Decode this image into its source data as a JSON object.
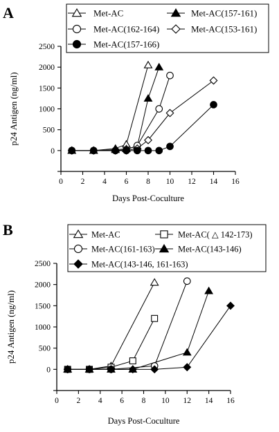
{
  "chart_data": [
    {
      "panel_label": "A",
      "type": "line",
      "xlabel": "Days Post-Coculture",
      "ylabel": "p24 Antigen (ng/ml)",
      "xlim": [
        0,
        16
      ],
      "ylim": [
        -500,
        2500
      ],
      "xticks": [
        0,
        2,
        4,
        6,
        8,
        10,
        12,
        14,
        16
      ],
      "yticks": [
        -500,
        0,
        500,
        1000,
        1500,
        2000,
        2500
      ],
      "ytick_labels": [
        "",
        "0",
        "500",
        "1000",
        "1500",
        "2000",
        "2500"
      ],
      "legend_rows": [
        [
          "Met-AC",
          "Met-AC(157-161)"
        ],
        [
          "Met-AC(162-164)",
          "Met-AC(153-161)"
        ],
        [
          "Met-AC(157-166)"
        ]
      ],
      "series": [
        {
          "name": "Met-AC",
          "marker": "triangle-open",
          "x": [
            1,
            3,
            5,
            6,
            8
          ],
          "y": [
            0,
            0,
            50,
            150,
            2050
          ]
        },
        {
          "name": "Met-AC(157-161)",
          "marker": "triangle-filled",
          "x": [
            1,
            3,
            5,
            6,
            7,
            8,
            9
          ],
          "y": [
            0,
            0,
            20,
            40,
            100,
            1250,
            2000
          ]
        },
        {
          "name": "Met-AC(162-164)",
          "marker": "circle-open",
          "x": [
            1,
            3,
            5,
            6,
            7,
            9,
            10
          ],
          "y": [
            0,
            0,
            0,
            20,
            120,
            1000,
            1800
          ]
        },
        {
          "name": "Met-AC(153-161)",
          "marker": "diamond-open",
          "x": [
            1,
            3,
            5,
            6,
            7,
            8,
            10,
            14
          ],
          "y": [
            0,
            0,
            0,
            0,
            50,
            250,
            900,
            1680
          ]
        },
        {
          "name": "Met-AC(157-166)",
          "marker": "circle-filled",
          "x": [
            1,
            3,
            5,
            6,
            7,
            8,
            9,
            10,
            14
          ],
          "y": [
            0,
            0,
            0,
            0,
            0,
            0,
            0,
            100,
            1100
          ]
        }
      ]
    },
    {
      "panel_label": "B",
      "type": "line",
      "xlabel": "Days Post-Coculture",
      "ylabel": "p24 Antigen (ng/ml)",
      "xlim": [
        0,
        16
      ],
      "ylim": [
        -500,
        2500
      ],
      "xticks": [
        0,
        2,
        4,
        6,
        8,
        10,
        12,
        14,
        16
      ],
      "yticks": [
        -500,
        0,
        500,
        1000,
        1500,
        2000,
        2500
      ],
      "ytick_labels": [
        "",
        "0",
        "500",
        "1000",
        "1500",
        "2000",
        "2500"
      ],
      "legend_rows": [
        [
          "Met-AC",
          "Met-AC( △ 142-173)"
        ],
        [
          "Met-AC(161-163)",
          "Met-AC(143-146)"
        ],
        [
          "Met-AC(143-146, 161-163)"
        ]
      ],
      "series": [
        {
          "name": "Met-AC",
          "marker": "triangle-open",
          "x": [
            1,
            3,
            5,
            9
          ],
          "y": [
            0,
            0,
            80,
            2050
          ]
        },
        {
          "name": "Met-AC( △ 142-173)",
          "marker": "square-open",
          "x": [
            1,
            3,
            5,
            7,
            9
          ],
          "y": [
            0,
            0,
            50,
            200,
            1200
          ]
        },
        {
          "name": "Met-AC(161-163)",
          "marker": "circle-open",
          "x": [
            1,
            3,
            5,
            9,
            12
          ],
          "y": [
            0,
            0,
            0,
            80,
            2080
          ]
        },
        {
          "name": "Met-AC(143-146)",
          "marker": "triangle-filled",
          "x": [
            1,
            3,
            5,
            7,
            12,
            14
          ],
          "y": [
            0,
            0,
            0,
            0,
            400,
            1850
          ]
        },
        {
          "name": "Met-AC(143-146, 161-163)",
          "marker": "diamond-filled",
          "x": [
            1,
            3,
            5,
            7,
            9,
            12,
            16
          ],
          "y": [
            0,
            0,
            0,
            0,
            0,
            50,
            1500
          ]
        }
      ]
    }
  ]
}
